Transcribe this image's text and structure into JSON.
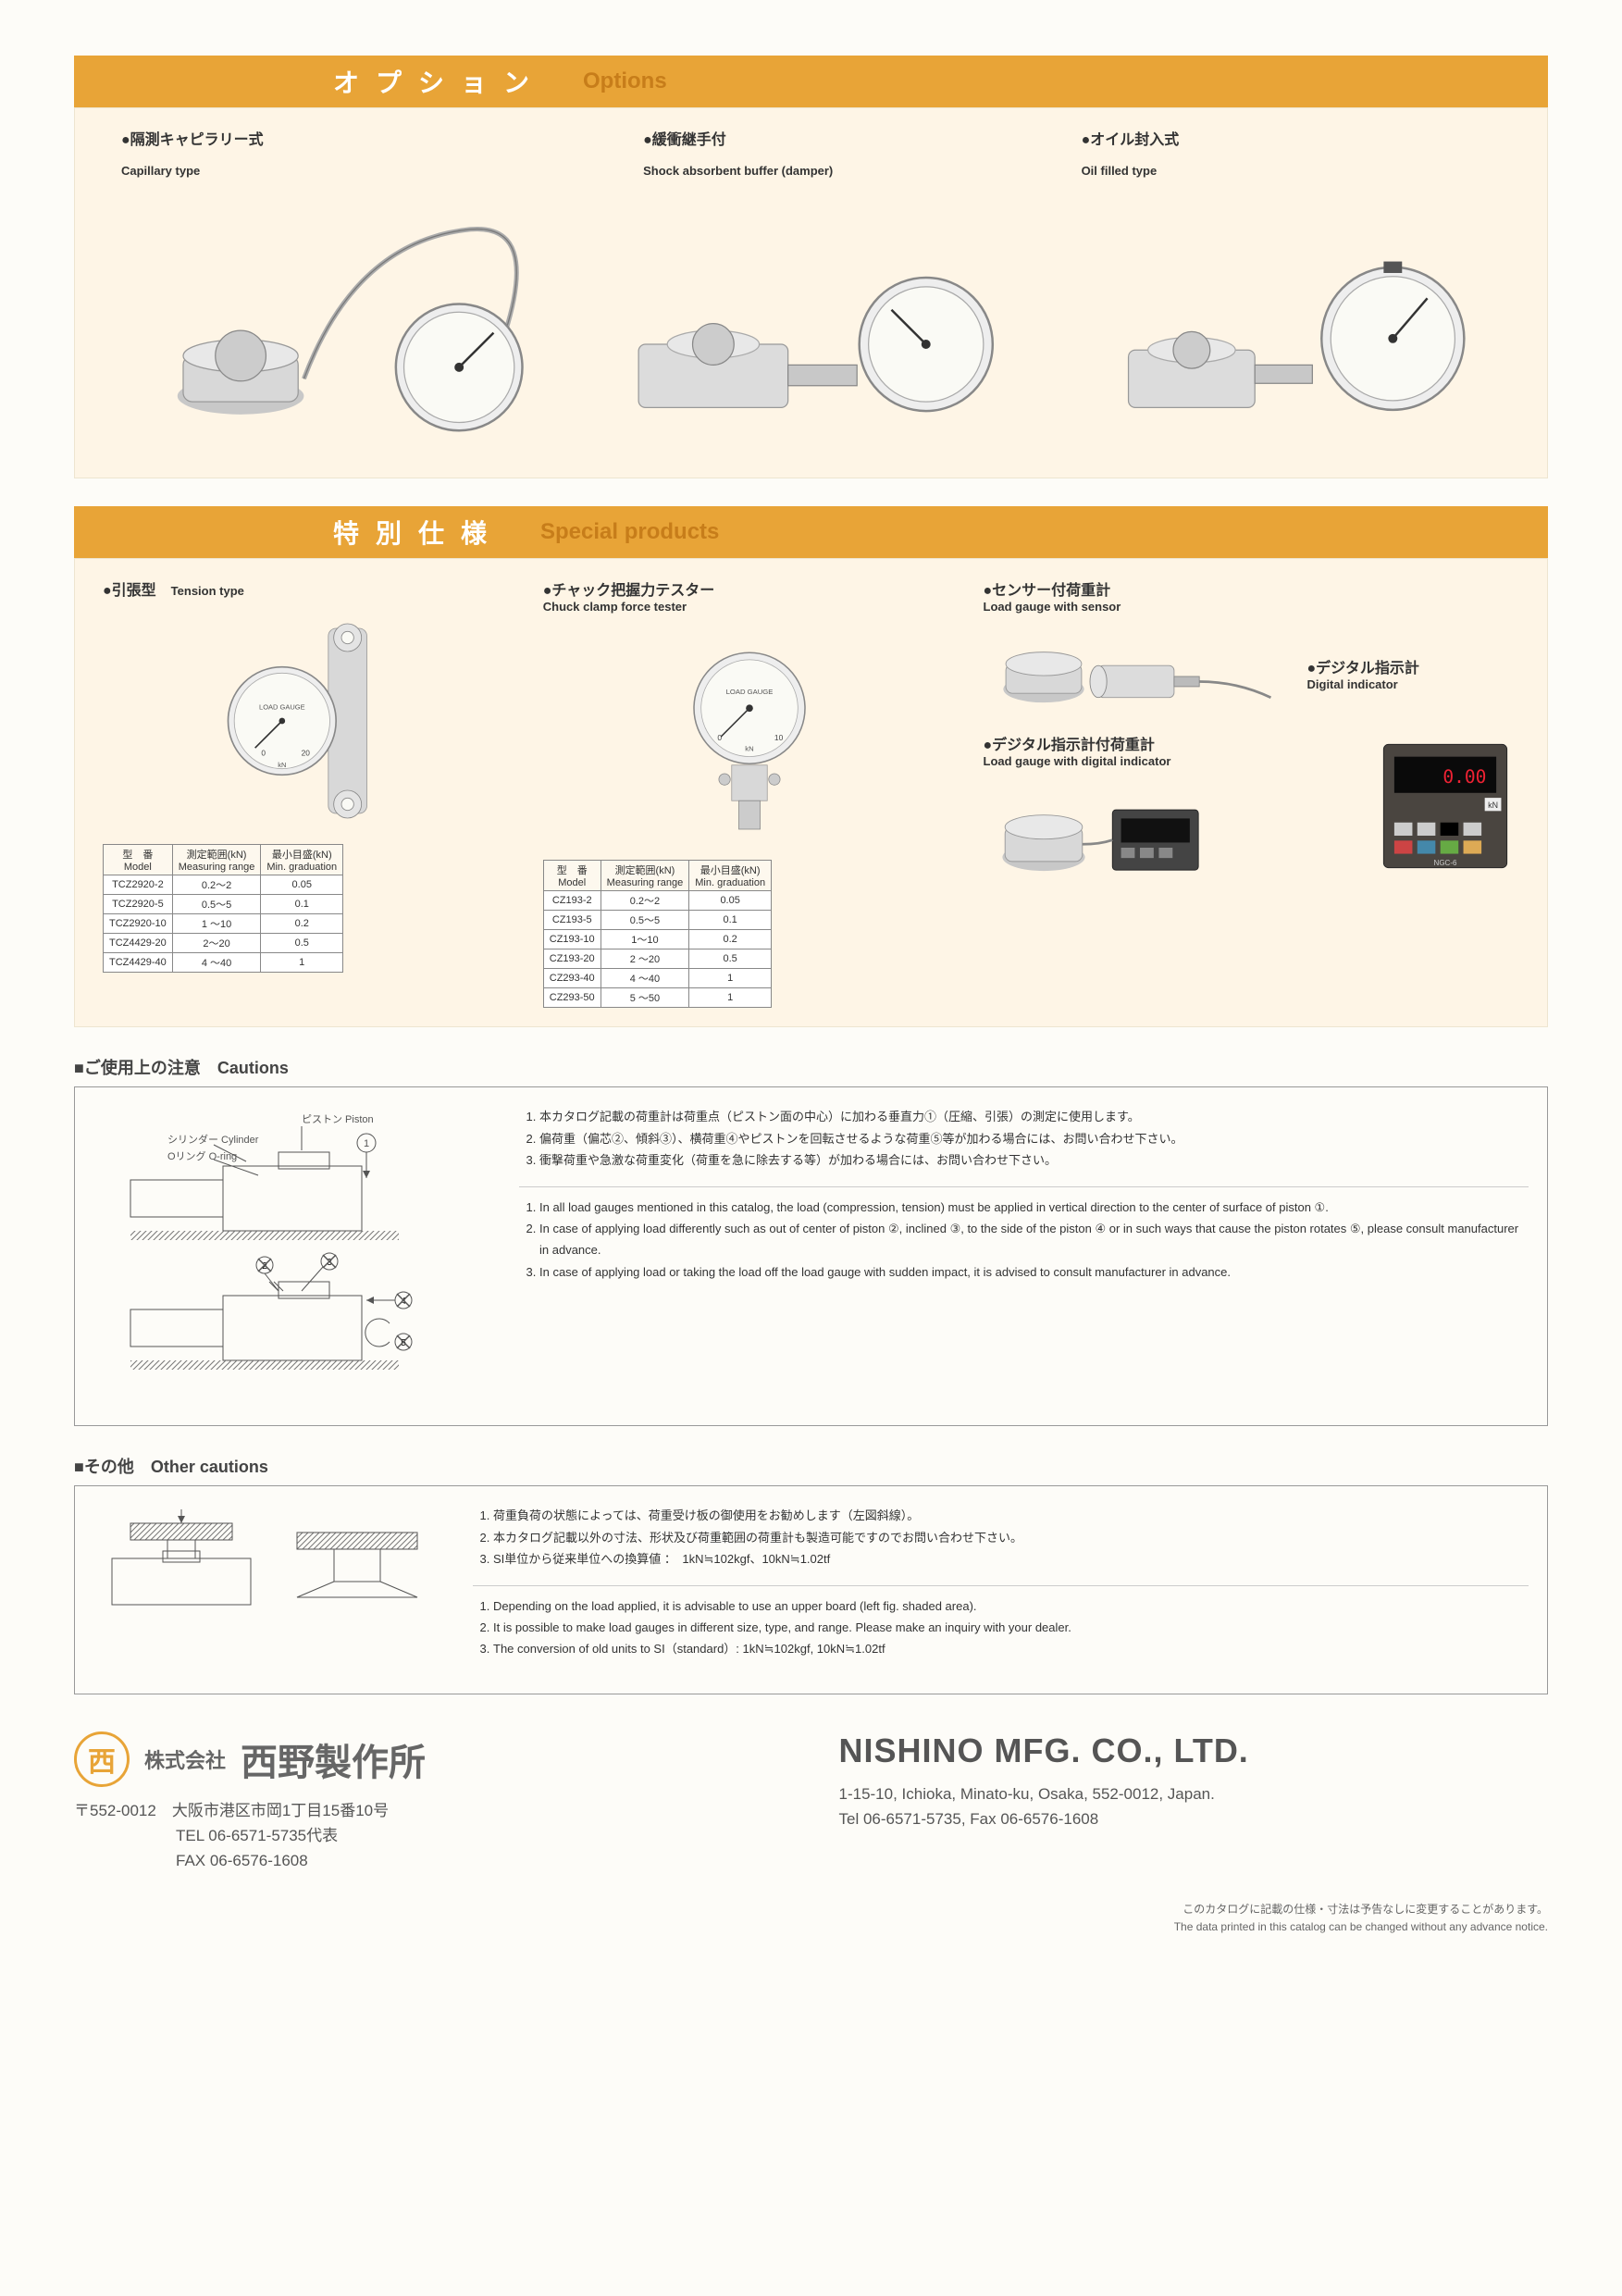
{
  "sections": {
    "options": {
      "jp": "オプション",
      "en": "Options"
    },
    "special": {
      "jp": "特別仕様",
      "en": "Special products"
    }
  },
  "options": [
    {
      "jp": "●隔測キャピラリー式",
      "en": "Capillary type"
    },
    {
      "jp": "●緩衝継手付",
      "en": "Shock absorbent buffer (damper)"
    },
    {
      "jp": "●オイル封入式",
      "en": "Oil filled type"
    }
  ],
  "special_products": {
    "tension": {
      "jp": "●引張型",
      "en": "Tension type"
    },
    "chuck": {
      "jp": "●チャック把握力テスター",
      "en": "Chuck clamp force tester"
    },
    "sensor": {
      "jp": "●センサー付荷重計",
      "en": "Load gauge with sensor"
    },
    "digital_indicator": {
      "jp": "●デジタル指示計",
      "en": "Digital indicator"
    },
    "digital_load": {
      "jp": "●デジタル指示計付荷重計",
      "en": "Load gauge with digital indicator"
    }
  },
  "table_headers": {
    "model_jp": "型　番",
    "model_en": "Model",
    "range_jp": "測定範囲(kN)",
    "range_en": "Measuring range",
    "grad_jp": "最小目盛(kN)",
    "grad_en": "Min. graduation"
  },
  "tension_table": {
    "rows": [
      [
        "TCZ2920-2",
        "0.2～2",
        "0.05"
      ],
      [
        "TCZ2920-5",
        "0.5～5",
        "0.1"
      ],
      [
        "TCZ2920-10",
        "1 ～10",
        "0.2"
      ],
      [
        "TCZ4429-20",
        "2～20",
        "0.5"
      ],
      [
        "TCZ4429-40",
        "4 ～40",
        "1"
      ]
    ]
  },
  "chuck_table": {
    "rows": [
      [
        "CZ193-2",
        "0.2～2",
        "0.05"
      ],
      [
        "CZ193-5",
        "0.5～5",
        "0.1"
      ],
      [
        "CZ193-10",
        "1～10",
        "0.2"
      ],
      [
        "CZ193-20",
        "2 ～20",
        "0.5"
      ],
      [
        "CZ293-40",
        "4 ～40",
        "1"
      ],
      [
        "CZ293-50",
        "5 ～50",
        "1"
      ]
    ]
  },
  "cautions": {
    "header": "■ご使用上の注意　Cautions",
    "diagram_labels": {
      "piston": "ピストン Piston",
      "cylinder": "シリンダー Cylinder",
      "oring": "Oリング O-ring"
    },
    "jp": [
      "本カタログ記載の荷重計は荷重点（ピストン面の中心）に加わる垂直力①（圧縮、引張）の測定に使用します。",
      "偏荷重（偏芯②、傾斜③）、横荷重④やピストンを回転させるような荷重⑤等が加わる場合には、お問い合わせ下さい。",
      "衝撃荷重や急激な荷重変化（荷重を急に除去する等）が加わる場合には、お問い合わせ下さい。"
    ],
    "en": [
      "In all load gauges mentioned in this catalog, the load (compression, tension) must be applied in vertical direction to the center of surface of piston ①.",
      "In case of applying load differently such as out of center of piston ②, inclined ③, to the side of the piston ④ or in such ways that cause the piston rotates ⑤, please consult manufacturer in advance.",
      "In case of applying load or taking the load off the load gauge with sudden impact, it is advised to consult manufacturer in advance."
    ]
  },
  "other": {
    "header": "■その他　Other cautions",
    "jp": [
      "荷重負荷の状態によっては、荷重受け板の御使用をお勧めします（左図斜線）。",
      "本カタログ記載以外の寸法、形状及び荷重範囲の荷重計も製造可能ですのでお問い合わせ下さい。",
      "SI単位から従来単位への換算値 ：　1kN≒102kgf、10kN≒1.02tf"
    ],
    "en": [
      "Depending on the load applied, it is advisable to use an upper board (left fig. shaded area).",
      "It is possible to make load gauges in different size, type, and range.  Please make an inquiry with your dealer.",
      "The conversion of old units to SI（standard）: 1kN≒102kgf,  10kN≒1.02tf"
    ]
  },
  "footer": {
    "logo": "西",
    "company_sub": "株式会社",
    "company_jp": "西野製作所",
    "postal": "〒552-0012　大阪市港区市岡1丁目15番10号",
    "tel_jp": "TEL 06-6571-5735代表",
    "fax_jp": "FAX 06-6576-1608",
    "company_en": "NISHINO MFG. CO., LTD.",
    "addr_en": "1-15-10, Ichioka, Minato-ku, Osaka, 552-0012, Japan.",
    "tel_en": "Tel 06-6571-5735, Fax 06-6576-1608"
  },
  "disclaimer": {
    "jp": "このカタログに記載の仕様・寸法は予告なしに変更することがあります。",
    "en": "The data printed in this catalog can be changed without any advance notice."
  },
  "colors": {
    "header_bg": "#e8a437",
    "header_en_text": "#c77d1a",
    "body_bg": "#fef5e6",
    "page_bg": "#fdfcf8",
    "logo": "#e8a437"
  }
}
